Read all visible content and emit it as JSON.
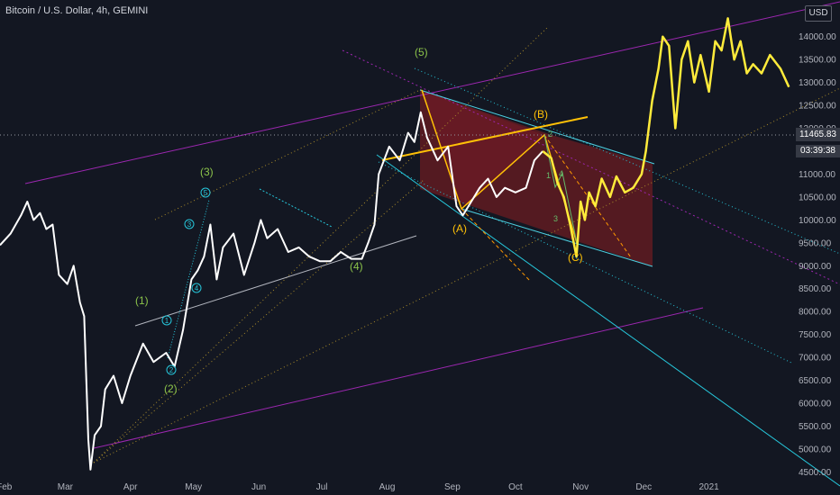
{
  "header": {
    "title": "Bitcoin / U.S. Dollar, 4h, GEMINI",
    "currency_badge": "USD"
  },
  "price_readout": {
    "last_price": "11465.83",
    "countdown": "03:39:38"
  },
  "chart_data": {
    "type": "line",
    "title": "Bitcoin / U.S. Dollar, 4h, GEMINI",
    "xlabel": "",
    "ylabel": "",
    "y_unit": "USD",
    "ylim": [
      4350,
      14800
    ],
    "y_ticks": [
      4500,
      5000,
      5500,
      6000,
      6500,
      7000,
      7500,
      8000,
      8500,
      9000,
      9500,
      10000,
      10500,
      11000,
      11500,
      12000,
      12500,
      13000,
      13500,
      14000
    ],
    "y_tick_labels": [
      "4500.00",
      "5000.00",
      "5500.00",
      "6000.00",
      "6500.00",
      "7000.00",
      "7500.00",
      "8000.00",
      "8500.00",
      "9000.00",
      "9500.00",
      "10000.00",
      "10500.00",
      "11000.00",
      "11500.00",
      "12000.00",
      "12500.00",
      "13000.00",
      "13500.00",
      "14000.00"
    ],
    "x_range": [
      "2020-01-30",
      "2021-02-10"
    ],
    "x_ticks": [
      {
        "date": "2020-02-01",
        "label": "Feb"
      },
      {
        "date": "2020-03-01",
        "label": "Mar"
      },
      {
        "date": "2020-04-01",
        "label": "Apr"
      },
      {
        "date": "2020-05-01",
        "label": "May"
      },
      {
        "date": "2020-06-01",
        "label": "Jun"
      },
      {
        "date": "2020-07-01",
        "label": "Jul"
      },
      {
        "date": "2020-08-01",
        "label": "Aug"
      },
      {
        "date": "2020-09-01",
        "label": "Sep"
      },
      {
        "date": "2020-10-01",
        "label": "Oct"
      },
      {
        "date": "2020-11-01",
        "label": "Nov"
      },
      {
        "date": "2020-12-01",
        "label": "Dec"
      },
      {
        "date": "2021-01-01",
        "label": "2021"
      }
    ],
    "grid": false,
    "series": [
      {
        "color": "#ffffff",
        "points": [
          [
            "2020-01-30",
            9450
          ],
          [
            "2020-02-04",
            9700
          ],
          [
            "2020-02-09",
            10100
          ],
          [
            "2020-02-12",
            10400
          ],
          [
            "2020-02-15",
            10000
          ],
          [
            "2020-02-18",
            10150
          ],
          [
            "2020-02-21",
            9800
          ],
          [
            "2020-02-24",
            9900
          ],
          [
            "2020-02-27",
            8800
          ],
          [
            "2020-03-02",
            8600
          ],
          [
            "2020-03-05",
            9000
          ],
          [
            "2020-03-08",
            8200
          ],
          [
            "2020-03-10",
            7900
          ],
          [
            "2020-03-12",
            5200
          ],
          [
            "2020-03-13",
            4550
          ],
          [
            "2020-03-15",
            5300
          ],
          [
            "2020-03-18",
            5500
          ],
          [
            "2020-03-20",
            6300
          ],
          [
            "2020-03-24",
            6600
          ],
          [
            "2020-03-28",
            6000
          ],
          [
            "2020-04-01",
            6600
          ],
          [
            "2020-04-07",
            7300
          ],
          [
            "2020-04-12",
            6900
          ],
          [
            "2020-04-18",
            7100
          ],
          [
            "2020-04-22",
            6800
          ],
          [
            "2020-04-26",
            7600
          ],
          [
            "2020-04-30",
            8700
          ],
          [
            "2020-05-03",
            8900
          ],
          [
            "2020-05-06",
            9200
          ],
          [
            "2020-05-09",
            9900
          ],
          [
            "2020-05-12",
            8700
          ],
          [
            "2020-05-15",
            9400
          ],
          [
            "2020-05-20",
            9700
          ],
          [
            "2020-05-25",
            8800
          ],
          [
            "2020-05-30",
            9500
          ],
          [
            "2020-06-02",
            10000
          ],
          [
            "2020-06-05",
            9600
          ],
          [
            "2020-06-10",
            9800
          ],
          [
            "2020-06-15",
            9300
          ],
          [
            "2020-06-20",
            9400
          ],
          [
            "2020-06-25",
            9200
          ],
          [
            "2020-06-30",
            9100
          ],
          [
            "2020-07-05",
            9100
          ],
          [
            "2020-07-10",
            9300
          ],
          [
            "2020-07-15",
            9150
          ],
          [
            "2020-07-20",
            9150
          ],
          [
            "2020-07-23",
            9500
          ],
          [
            "2020-07-26",
            9900
          ],
          [
            "2020-07-28",
            11000
          ],
          [
            "2020-08-02",
            11600
          ],
          [
            "2020-08-07",
            11300
          ],
          [
            "2020-08-11",
            11900
          ],
          [
            "2020-08-14",
            11700
          ],
          [
            "2020-08-17",
            12350
          ],
          [
            "2020-08-20",
            11800
          ],
          [
            "2020-08-25",
            11300
          ],
          [
            "2020-08-30",
            11600
          ],
          [
            "2020-09-03",
            10300
          ],
          [
            "2020-09-06",
            10100
          ],
          [
            "2020-09-10",
            10400
          ],
          [
            "2020-09-14",
            10700
          ],
          [
            "2020-09-18",
            10900
          ],
          [
            "2020-09-22",
            10500
          ],
          [
            "2020-09-26",
            10700
          ],
          [
            "2020-10-01",
            10600
          ],
          [
            "2020-10-06",
            10700
          ],
          [
            "2020-10-10",
            11300
          ],
          [
            "2020-10-14",
            11500
          ]
        ]
      },
      {
        "color": "#ffeb3b",
        "points": [
          [
            "2020-10-14",
            11500
          ],
          [
            "2020-10-18",
            11350
          ],
          [
            "2020-10-21",
            10800
          ],
          [
            "2020-10-24",
            10500
          ],
          [
            "2020-10-27",
            9900
          ],
          [
            "2020-10-30",
            9200
          ],
          [
            "2020-11-01",
            10400
          ],
          [
            "2020-11-03",
            10000
          ],
          [
            "2020-11-05",
            10600
          ],
          [
            "2020-11-08",
            10300
          ],
          [
            "2020-11-11",
            10900
          ],
          [
            "2020-11-15",
            10500
          ],
          [
            "2020-11-18",
            10950
          ],
          [
            "2020-11-22",
            10600
          ],
          [
            "2020-11-26",
            10700
          ],
          [
            "2020-11-30",
            11000
          ],
          [
            "2020-12-02",
            11500
          ],
          [
            "2020-12-05",
            12600
          ],
          [
            "2020-12-08",
            13300
          ],
          [
            "2020-12-10",
            14000
          ],
          [
            "2020-12-13",
            13800
          ],
          [
            "2020-12-16",
            12000
          ],
          [
            "2020-12-19",
            13500
          ],
          [
            "2020-12-22",
            13900
          ],
          [
            "2020-12-25",
            13000
          ],
          [
            "2020-12-28",
            13600
          ],
          [
            "2021-01-01",
            12800
          ],
          [
            "2021-01-04",
            13900
          ],
          [
            "2021-01-07",
            13700
          ],
          [
            "2021-01-10",
            14400
          ],
          [
            "2021-01-13",
            13500
          ],
          [
            "2021-01-16",
            13900
          ],
          [
            "2021-01-19",
            13200
          ],
          [
            "2021-01-22",
            13400
          ],
          [
            "2021-01-26",
            13200
          ],
          [
            "2021-01-30",
            13600
          ],
          [
            "2021-02-04",
            13300
          ],
          [
            "2021-02-08",
            12900
          ]
        ]
      }
    ],
    "annotations": [
      "(1)",
      "(2)",
      "(3)",
      "(4)",
      "(5)",
      "(A)",
      "(B)",
      "(C)",
      "1",
      "2",
      "3",
      "4",
      "5"
    ]
  }
}
